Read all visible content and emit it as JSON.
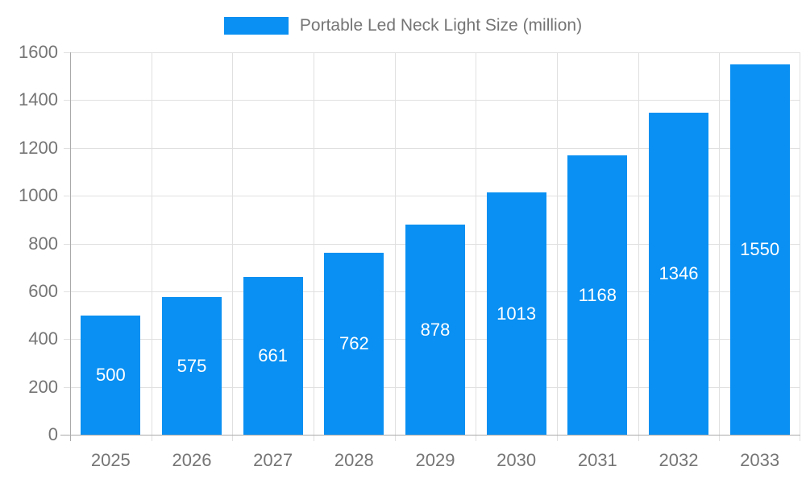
{
  "chart_data": {
    "type": "bar",
    "title": "Portable Led Neck Light Size (million)",
    "series_name": "Portable Led Neck Light Size (million)",
    "categories": [
      "2025",
      "2026",
      "2027",
      "2028",
      "2029",
      "2030",
      "2031",
      "2032",
      "2033"
    ],
    "values": [
      500,
      575,
      661,
      762,
      878,
      1013,
      1168,
      1346,
      1550
    ],
    "xlabel": "",
    "ylabel": "",
    "ylim": [
      0,
      1600
    ],
    "ytick_step": 200,
    "yticks": [
      0,
      200,
      400,
      600,
      800,
      1000,
      1200,
      1400,
      1600
    ],
    "grid": true,
    "legend_position": "top-center",
    "value_label_position": "inside-center",
    "colors": {
      "bar": "#0a90f2",
      "axis_text": "#757575",
      "value_text": "#ffffff",
      "grid_line": "#e0e0e0",
      "axis_line": "#aaaaaa",
      "background": "#ffffff"
    }
  }
}
